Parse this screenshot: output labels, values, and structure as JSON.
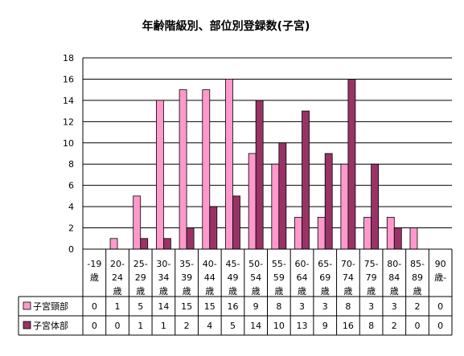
{
  "chart_data": {
    "type": "bar",
    "title": "年齢階級別、部位別登録数(子宮)",
    "ylim": [
      0,
      18
    ],
    "yticks": [
      "0",
      "2",
      "4",
      "6",
      "8",
      "10",
      "12",
      "14",
      "16",
      "18"
    ],
    "grid": true,
    "legend": "table-left",
    "categories": [
      [
        "-19",
        "歳"
      ],
      [
        "20-",
        "24",
        "歳"
      ],
      [
        "25-",
        "29",
        "歳"
      ],
      [
        "30-",
        "34",
        "歳"
      ],
      [
        "35-",
        "39",
        "歳"
      ],
      [
        "40-",
        "44",
        "歳"
      ],
      [
        "45-",
        "49",
        "歳"
      ],
      [
        "50-",
        "54",
        "歳"
      ],
      [
        "55-",
        "59",
        "歳"
      ],
      [
        "60-",
        "64",
        "歳"
      ],
      [
        "65-",
        "69",
        "歳"
      ],
      [
        "70-",
        "74",
        "歳"
      ],
      [
        "75-",
        "79",
        "歳"
      ],
      [
        "80-",
        "84",
        "歳"
      ],
      [
        "85-",
        "89",
        "歳"
      ],
      [
        "90",
        "歳-"
      ]
    ],
    "series": [
      {
        "name": "子宮頸部",
        "color": "#ff99cc",
        "values": [
          0,
          1,
          5,
          14,
          15,
          15,
          16,
          9,
          8,
          3,
          3,
          8,
          3,
          3,
          2,
          0
        ]
      },
      {
        "name": "子宮体部",
        "color": "#993366",
        "values": [
          0,
          0,
          1,
          1,
          2,
          4,
          5,
          14,
          10,
          13,
          9,
          16,
          8,
          2,
          0,
          0
        ]
      }
    ]
  }
}
